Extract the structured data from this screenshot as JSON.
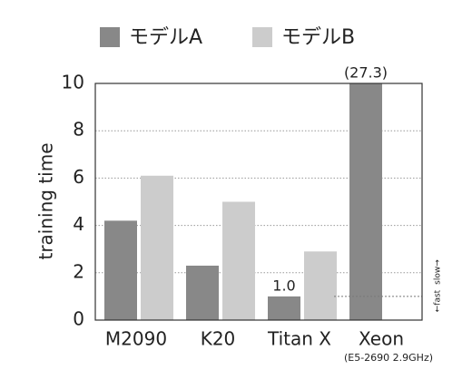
{
  "chart_data": {
    "type": "bar",
    "y_label": "training time",
    "categories": [
      "M2090",
      "K20",
      "Titan X",
      "Xeon"
    ],
    "x_sublabels": [
      null,
      null,
      null,
      "(E5-2690 2.9GHz)"
    ],
    "series": [
      {
        "name": "モデルA",
        "color": "#888888",
        "values": [
          4.2,
          2.3,
          1.0,
          27.3
        ],
        "value_labels": [
          null,
          null,
          "1.0",
          "(27.3)"
        ]
      },
      {
        "name": "モデルB",
        "color": "#cccccc",
        "values": [
          6.1,
          5.0,
          2.9,
          null
        ]
      }
    ],
    "ylim": [
      0,
      10
    ],
    "yticks": [
      0,
      2,
      4,
      6,
      8,
      10
    ],
    "grid": true,
    "hline": 1.0,
    "annotations": [
      "←fast",
      "slow→"
    ],
    "legend": "top"
  }
}
